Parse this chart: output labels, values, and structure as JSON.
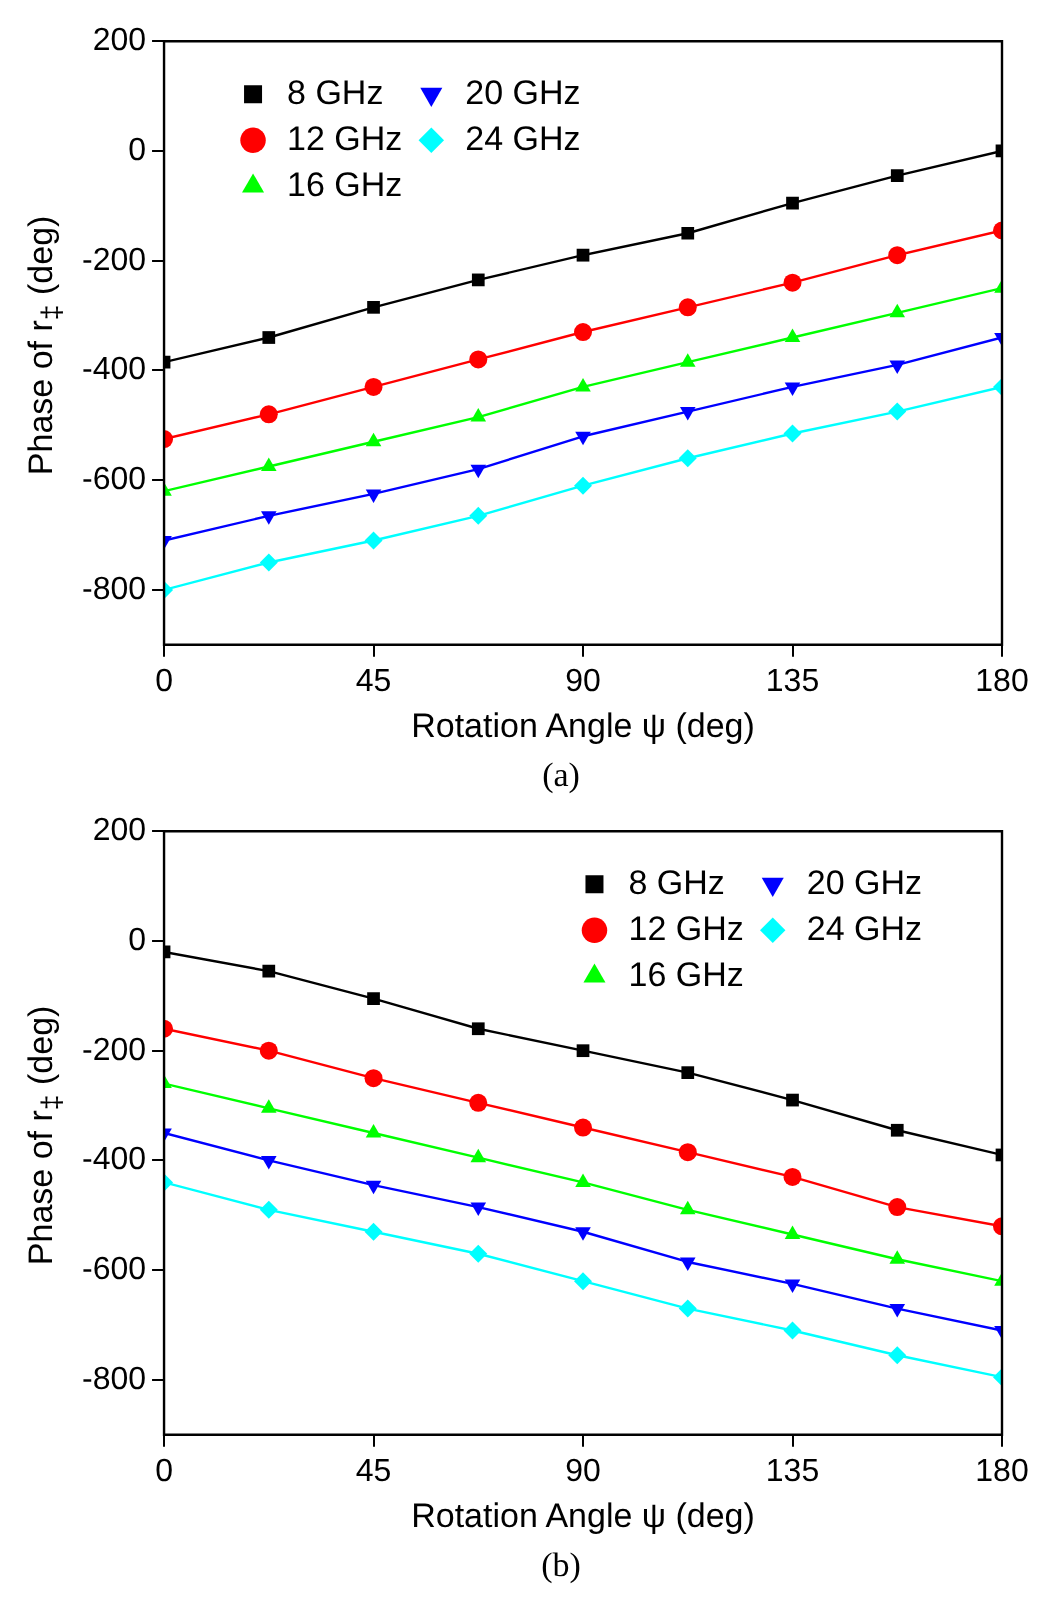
{
  "chart_data": [
    {
      "type": "line",
      "annotations": [
        "(a)"
      ],
      "xlabel": "Rotation Angle ψ (deg)",
      "ylabel": "Phase of  r$_{‡}$ (deg)",
      "x": [
        0,
        22.5,
        45,
        67.5,
        90,
        112.5,
        135,
        157.5,
        180
      ],
      "xlim": [
        0,
        180
      ],
      "xticks": [
        0,
        45,
        90,
        135,
        180
      ],
      "ylim": [
        -900,
        200
      ],
      "yticks": [
        -800,
        -600,
        -400,
        -200,
        0,
        200
      ],
      "grid": false,
      "legend": "top left",
      "line_style": "solid",
      "series": [
        {
          "name": "8 GHz",
          "color": "#000000",
          "marker": "square",
          "values": [
            -385,
            -340,
            -285,
            -235,
            -190,
            -150,
            -95,
            -45,
            0
          ]
        },
        {
          "name": "12 GHz",
          "color": "#ff0000",
          "marker": "circle",
          "values": [
            -525,
            -480,
            -430,
            -380,
            -330,
            -285,
            -240,
            -190,
            -145
          ]
        },
        {
          "name": "16 GHz",
          "color": "#00ff00",
          "marker": "triangle",
          "values": [
            -620,
            -575,
            -530,
            -485,
            -430,
            -385,
            -340,
            -295,
            -250
          ]
        },
        {
          "name": "20 GHz",
          "color": "#0000ff",
          "marker": "triangle",
          "values": [
            -710,
            -665,
            -625,
            -580,
            -520,
            -475,
            -430,
            -390,
            -340
          ]
        },
        {
          "name": "24 GHz",
          "color": "#00ffff",
          "marker": "diamond",
          "values": [
            -800,
            -750,
            -710,
            -665,
            -610,
            -560,
            -515,
            -475,
            -430
          ]
        }
      ]
    },
    {
      "type": "line",
      "annotations": [
        "(b)"
      ],
      "xlabel": "Rotation Angle ψ (deg)",
      "ylabel": "Phase of  r$_{‡}$ (deg)",
      "x": [
        0,
        22.5,
        45,
        67.5,
        90,
        112.5,
        135,
        157.5,
        180
      ],
      "xlim": [
        0,
        180
      ],
      "xticks": [
        0,
        45,
        90,
        135,
        180
      ],
      "ylim": [
        -900,
        200
      ],
      "yticks": [
        -800,
        -600,
        -400,
        -200,
        0,
        200
      ],
      "grid": false,
      "legend": "top right",
      "line_style": "solid",
      "series": [
        {
          "name": "8 GHz",
          "color": "#000000",
          "marker": "square",
          "values": [
            -20,
            -55,
            -105,
            -160,
            -200,
            -240,
            -290,
            -345,
            -390
          ]
        },
        {
          "name": "12 GHz",
          "color": "#ff0000",
          "marker": "circle",
          "values": [
            -160,
            -200,
            -250,
            -295,
            -340,
            -385,
            -430,
            -485,
            -520
          ]
        },
        {
          "name": "16 GHz",
          "color": "#00ff00",
          "marker": "triangle",
          "values": [
            -260,
            -305,
            -350,
            -395,
            -440,
            -490,
            -535,
            -580,
            -620
          ]
        },
        {
          "name": "20 GHz",
          "color": "#0000ff",
          "marker": "triangle",
          "values": [
            -350,
            -400,
            -445,
            -485,
            -530,
            -585,
            -625,
            -670,
            -710
          ]
        },
        {
          "name": "24 GHz",
          "color": "#00ffff",
          "marker": "diamond",
          "values": [
            -440,
            -490,
            -530,
            -570,
            -620,
            -670,
            -710,
            -755,
            -795
          ]
        }
      ]
    }
  ]
}
